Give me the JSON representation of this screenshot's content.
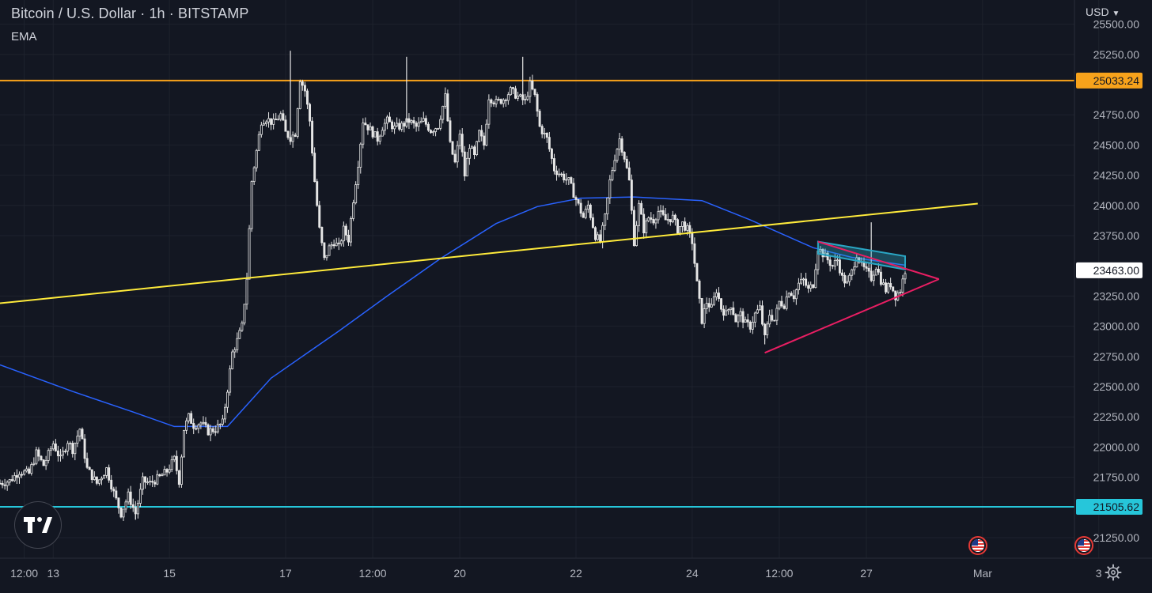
{
  "header": {
    "title": "Bitcoin / U.S. Dollar · 1h · BITSTAMP",
    "indicator_label": "EMA",
    "currency_label": "USD"
  },
  "colors": {
    "background": "#131722",
    "grid": "#1e222d",
    "candle": "#e6e6e6",
    "ema": "#2962ff",
    "orange_line": "#f7a21b",
    "cyan_line": "#26c6da",
    "yellow_line": "#ffeb3b",
    "triangle": "#e91e63",
    "channel": "#2aa6c4"
  },
  "icons": {
    "logo": "tradingview-logo-icon",
    "settings": "settings-gear-icon",
    "events": "us-flag-event-icon"
  },
  "chart_data": {
    "type": "candlestick",
    "title": "Bitcoin / U.S. Dollar · 1h · BITSTAMP",
    "y_ticks": [
      25500,
      25250,
      24750,
      24500,
      24250,
      24000,
      23750,
      23250,
      23000,
      22750,
      22500,
      22250,
      22000,
      21750,
      21250
    ],
    "y_tick_labels": [
      "25500.00",
      "25250.00",
      "24750.00",
      "24500.00",
      "24250.00",
      "24000.00",
      "23750.00",
      "23250.00",
      "23000.00",
      "22750.00",
      "22500.00",
      "22250.00",
      "22000.00",
      "21750.00",
      "21250.00"
    ],
    "ylim": [
      21080,
      25700
    ],
    "x_ticks": [
      {
        "label": "12:00",
        "t": 10
      },
      {
        "label": "13",
        "t": 22
      },
      {
        "label": "15",
        "t": 70
      },
      {
        "label": "17",
        "t": 118
      },
      {
        "label": "12:00",
        "t": 154
      },
      {
        "label": "20",
        "t": 190
      },
      {
        "label": "22",
        "t": 238
      },
      {
        "label": "24",
        "t": 286
      },
      {
        "label": "12:00",
        "t": 322
      },
      {
        "label": "27",
        "t": 358
      },
      {
        "label": "Mar",
        "t": 406
      },
      {
        "label": "3",
        "t": 454
      }
    ],
    "xlim": [
      0,
      476
    ],
    "price_levels": [
      {
        "name": "resistance",
        "value": 25033.24,
        "label": "25033.24",
        "color": "#f7a21b"
      },
      {
        "name": "support",
        "value": 21505.62,
        "label": "21505.62",
        "color": "#26c6da"
      }
    ],
    "last_price": {
      "value": 23463.0,
      "label": "23463.00"
    },
    "trend_line": {
      "from": {
        "t": 0,
        "price": 23190
      },
      "to": {
        "t": 404,
        "price": 24015
      },
      "color": "#ffeb3b"
    },
    "triangle": {
      "upper": [
        {
          "t": 338,
          "price": 23700
        },
        {
          "t": 388,
          "price": 23390
        }
      ],
      "lower": [
        {
          "t": 316,
          "price": 22780
        },
        {
          "t": 388,
          "price": 23390
        }
      ],
      "color": "#e91e63"
    },
    "channel": {
      "points": [
        {
          "t": 338,
          "price": 23700
        },
        {
          "t": 374,
          "price": 23580
        },
        {
          "t": 374,
          "price": 23470
        },
        {
          "t": 338,
          "price": 23600
        }
      ],
      "color": "#2aa6c4"
    },
    "ema": {
      "name": "EMA",
      "points": [
        [
          0,
          22680
        ],
        [
          30,
          22460
        ],
        [
          55,
          22290
        ],
        [
          72,
          22170
        ],
        [
          94,
          22170
        ],
        [
          112,
          22570
        ],
        [
          140,
          22960
        ],
        [
          160,
          23250
        ],
        [
          182,
          23560
        ],
        [
          205,
          23850
        ],
        [
          222,
          23990
        ],
        [
          240,
          24060
        ],
        [
          262,
          24070
        ],
        [
          290,
          24040
        ],
        [
          310,
          23880
        ],
        [
          336,
          23650
        ],
        [
          352,
          23570
        ],
        [
          374,
          23505
        ]
      ]
    },
    "price_path": [
      [
        0,
        21700
      ],
      [
        4,
        21720
      ],
      [
        8,
        21800
      ],
      [
        12,
        21780
      ],
      [
        15,
        21950
      ],
      [
        18,
        21850
      ],
      [
        22,
        22030
      ],
      [
        25,
        21900
      ],
      [
        28,
        22050
      ],
      [
        30,
        21980
      ],
      [
        33,
        22150
      ],
      [
        36,
        21820
      ],
      [
        40,
        21700
      ],
      [
        44,
        21820
      ],
      [
        47,
        21620
      ],
      [
        50,
        21450
      ],
      [
        53,
        21600
      ],
      [
        56,
        21450
      ],
      [
        59,
        21720
      ],
      [
        62,
        21700
      ],
      [
        66,
        21750
      ],
      [
        69,
        21800
      ],
      [
        72,
        21900
      ],
      [
        74,
        21720
      ],
      [
        76,
        22150
      ],
      [
        78,
        22250
      ],
      [
        80,
        22180
      ],
      [
        83,
        22200
      ],
      [
        86,
        22130
      ],
      [
        89,
        22150
      ],
      [
        92,
        22200
      ],
      [
        94,
        22480
      ],
      [
        96,
        22780
      ],
      [
        98,
        22880
      ],
      [
        100,
        23000
      ],
      [
        102,
        23400
      ],
      [
        104,
        24200
      ],
      [
        106,
        24450
      ],
      [
        108,
        24700
      ],
      [
        110,
        24720
      ],
      [
        113,
        24680
      ],
      [
        116,
        24750
      ],
      [
        118,
        24600
      ],
      [
        120,
        24560
      ],
      [
        122,
        24600
      ],
      [
        124,
        25050
      ],
      [
        126,
        24950
      ],
      [
        128,
        24700
      ],
      [
        130,
        24200
      ],
      [
        132,
        23800
      ],
      [
        134,
        23550
      ],
      [
        136,
        23650
      ],
      [
        138,
        23700
      ],
      [
        140,
        23650
      ],
      [
        142,
        23800
      ],
      [
        144,
        23720
      ],
      [
        146,
        24050
      ],
      [
        148,
        24350
      ],
      [
        150,
        24700
      ],
      [
        152,
        24650
      ],
      [
        154,
        24600
      ],
      [
        156,
        24550
      ],
      [
        158,
        24650
      ],
      [
        160,
        24700
      ],
      [
        163,
        24640
      ],
      [
        166,
        24660
      ],
      [
        169,
        24700
      ],
      [
        172,
        24650
      ],
      [
        175,
        24700
      ],
      [
        178,
        24620
      ],
      [
        181,
        24660
      ],
      [
        184,
        24900
      ],
      [
        186,
        24500
      ],
      [
        188,
        24350
      ],
      [
        190,
        24600
      ],
      [
        192,
        24250
      ],
      [
        194,
        24500
      ],
      [
        196,
        24400
      ],
      [
        198,
        24600
      ],
      [
        200,
        24500
      ],
      [
        202,
        24900
      ],
      [
        205,
        24850
      ],
      [
        208,
        24880
      ],
      [
        211,
        24950
      ],
      [
        214,
        24900
      ],
      [
        217,
        24860
      ],
      [
        219,
        25000
      ],
      [
        221,
        24900
      ],
      [
        223,
        24650
      ],
      [
        226,
        24550
      ],
      [
        229,
        24300
      ],
      [
        232,
        24250
      ],
      [
        235,
        24200
      ],
      [
        238,
        24050
      ],
      [
        241,
        23900
      ],
      [
        243,
        24000
      ],
      [
        246,
        23750
      ],
      [
        248,
        23700
      ],
      [
        250,
        23900
      ],
      [
        252,
        24200
      ],
      [
        254,
        24400
      ],
      [
        256,
        24550
      ],
      [
        258,
        24400
      ],
      [
        260,
        24200
      ],
      [
        262,
        23700
      ],
      [
        264,
        24000
      ],
      [
        266,
        23800
      ],
      [
        268,
        23900
      ],
      [
        270,
        23880
      ],
      [
        272,
        23950
      ],
      [
        275,
        23880
      ],
      [
        278,
        23900
      ],
      [
        280,
        23800
      ],
      [
        282,
        23850
      ],
      [
        284,
        23800
      ],
      [
        286,
        23700
      ],
      [
        288,
        23350
      ],
      [
        290,
        23050
      ],
      [
        292,
        23200
      ],
      [
        294,
        23150
      ],
      [
        296,
        23300
      ],
      [
        298,
        23150
      ],
      [
        300,
        23100
      ],
      [
        302,
        23180
      ],
      [
        304,
        23050
      ],
      [
        306,
        23100
      ],
      [
        308,
        23020
      ],
      [
        310,
        23000
      ],
      [
        312,
        23100
      ],
      [
        314,
        23150
      ],
      [
        316,
        22900
      ],
      [
        318,
        23100
      ],
      [
        320,
        23050
      ],
      [
        322,
        23200
      ],
      [
        324,
        23180
      ],
      [
        326,
        23300
      ],
      [
        328,
        23250
      ],
      [
        330,
        23350
      ],
      [
        332,
        23380
      ],
      [
        334,
        23300
      ],
      [
        336,
        23350
      ],
      [
        338,
        23650
      ],
      [
        340,
        23600
      ],
      [
        342,
        23550
      ],
      [
        344,
        23500
      ],
      [
        346,
        23550
      ],
      [
        348,
        23400
      ],
      [
        350,
        23350
      ],
      [
        352,
        23450
      ],
      [
        354,
        23600
      ],
      [
        356,
        23500
      ],
      [
        358,
        23450
      ],
      [
        360,
        23400
      ],
      [
        362,
        23500
      ],
      [
        364,
        23380
      ],
      [
        366,
        23300
      ],
      [
        368,
        23350
      ],
      [
        370,
        23250
      ],
      [
        372,
        23300
      ],
      [
        374,
        23463
      ]
    ],
    "extreme_wicks": [
      {
        "t": 120,
        "price": 25280
      },
      {
        "t": 168,
        "price": 25230
      },
      {
        "t": 216,
        "price": 25230
      },
      {
        "t": 338,
        "price": 23700
      },
      {
        "t": 360,
        "price": 23860
      },
      {
        "t": 56,
        "price": 21400
      },
      {
        "t": 316,
        "price": 22850
      }
    ],
    "event_markers": [
      {
        "name": "us-event-1",
        "t": 404
      },
      {
        "name": "us-event-2",
        "t": 448
      }
    ]
  }
}
